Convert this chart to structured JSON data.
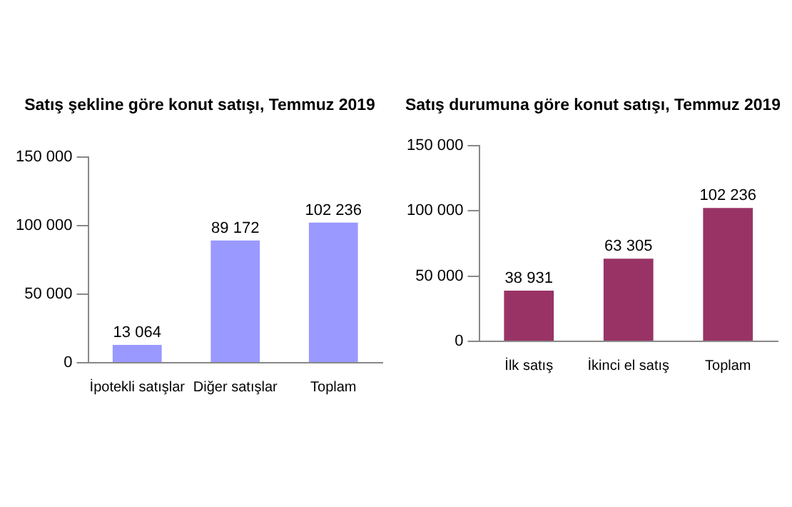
{
  "chart_data": [
    {
      "type": "bar",
      "title": "Satış şekline göre konut satışı, Temmuz 2019",
      "categories": [
        "İpotekli satışlar",
        "Diğer satışlar",
        "Toplam"
      ],
      "values": [
        13064,
        89172,
        102236
      ],
      "value_labels": [
        "13 064",
        "89 172",
        "102 236"
      ],
      "color": "#9999ff",
      "ylim": [
        0,
        150000
      ],
      "yticks": [
        {
          "value": 0,
          "label": "0"
        },
        {
          "value": 50000,
          "label": "50 000"
        },
        {
          "value": 100000,
          "label": "100 000"
        },
        {
          "value": 150000,
          "label": "150 000"
        }
      ],
      "grid": false,
      "legend": false
    },
    {
      "type": "bar",
      "title": "Satış durumuna göre konut satışı, Temmuz 2019",
      "categories": [
        "İlk satış",
        "İkinci el satış",
        "Toplam"
      ],
      "values": [
        38931,
        63305,
        102236
      ],
      "value_labels": [
        "38 931",
        "63 305",
        "102 236"
      ],
      "color": "#993366",
      "ylim": [
        0,
        150000
      ],
      "yticks": [
        {
          "value": 0,
          "label": "0"
        },
        {
          "value": 50000,
          "label": "50 000"
        },
        {
          "value": 100000,
          "label": "100 000"
        },
        {
          "value": 150000,
          "label": "150 000"
        }
      ],
      "grid": false,
      "legend": false
    }
  ]
}
